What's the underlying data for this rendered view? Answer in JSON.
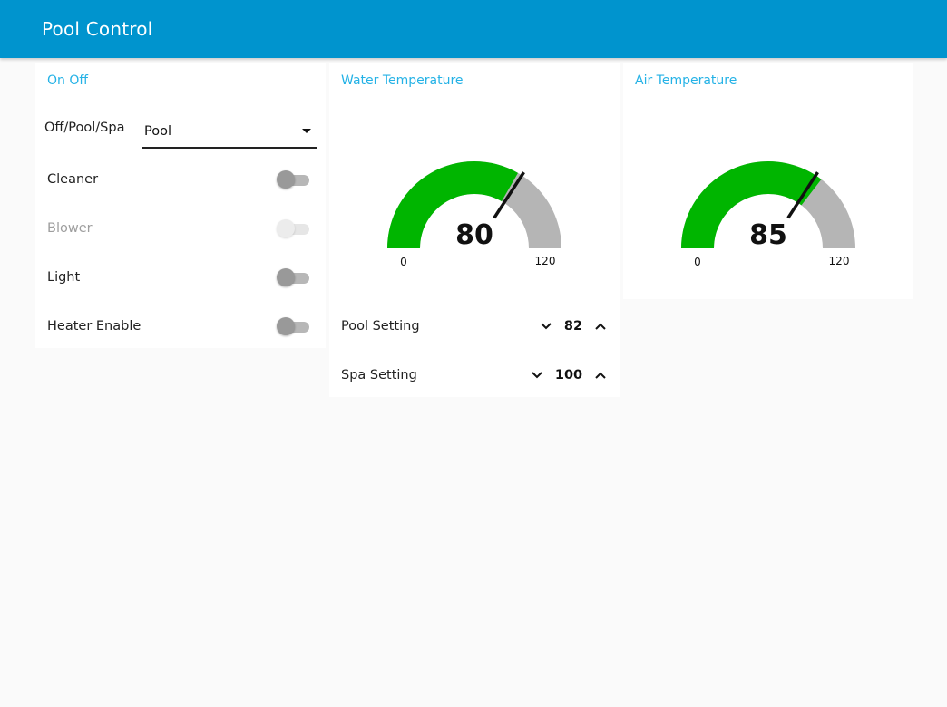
{
  "app": {
    "title": "Pool Control"
  },
  "colors": {
    "header": "#0094ce",
    "section_title": "#24b2e6",
    "gauge_fill": "#00b500",
    "gauge_track": "#b5b5b5"
  },
  "on_off": {
    "title": "On Off",
    "mode": {
      "label": "Off/Pool/Spa",
      "selected": "Pool"
    },
    "toggles": [
      {
        "label": "Cleaner",
        "on": false,
        "disabled": false
      },
      {
        "label": "Blower",
        "on": false,
        "disabled": true
      },
      {
        "label": "Light",
        "on": false,
        "disabled": false
      },
      {
        "label": "Heater Enable",
        "on": false,
        "disabled": false
      }
    ]
  },
  "water": {
    "title": "Water Temperature",
    "gauge": {
      "value": "80",
      "min": "0",
      "max": "120",
      "setpoint": 82
    },
    "pool_setting": {
      "label": "Pool Setting",
      "value": "82"
    },
    "spa_setting": {
      "label": "Spa Setting",
      "value": "100"
    }
  },
  "air": {
    "title": "Air Temperature",
    "gauge": {
      "value": "85",
      "min": "0",
      "max": "120",
      "setpoint": 82
    }
  }
}
